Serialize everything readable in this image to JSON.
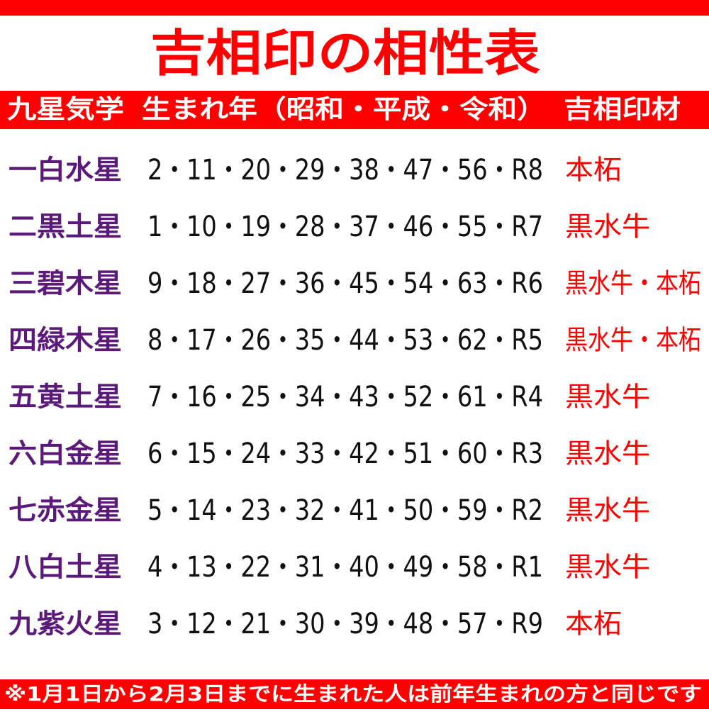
{
  "header": {
    "title": "吉相印の相性表"
  },
  "table": {
    "columns": [
      "九星気学",
      "生まれ年（昭和・平成・令和）",
      "吉相印材"
    ],
    "rows": [
      [
        "一白水星",
        "2・11・20・29・38・47・56・R8",
        "本柘"
      ],
      [
        "二黒土星",
        "1・10・19・28・37・46・55・R7",
        "黒水牛"
      ],
      [
        "三碧木星",
        "9・18・27・36・45・54・63・R6",
        "黒水牛・本柘"
      ],
      [
        "四緑木星",
        "8・17・26・35・44・53・62・R5",
        "黒水牛・本柘"
      ],
      [
        "五黄土星",
        "7・16・25・34・43・52・61・R4",
        "黒水牛"
      ],
      [
        "六白金星",
        "6・15・24・33・42・51・60・R3",
        "黒水牛"
      ],
      [
        "七赤金星",
        "5・14・23・32・41・50・59・R2",
        "黒水牛"
      ],
      [
        "八白土星",
        "4・13・22・31・40・49・58・R1",
        "黒水牛"
      ],
      [
        "九紫火星",
        "3・12・21・30・39・48・57・R9",
        "本柘"
      ]
    ]
  },
  "footnote": "※1月1日から2月3日までに生まれた人は前年生まれの方と同じです"
}
